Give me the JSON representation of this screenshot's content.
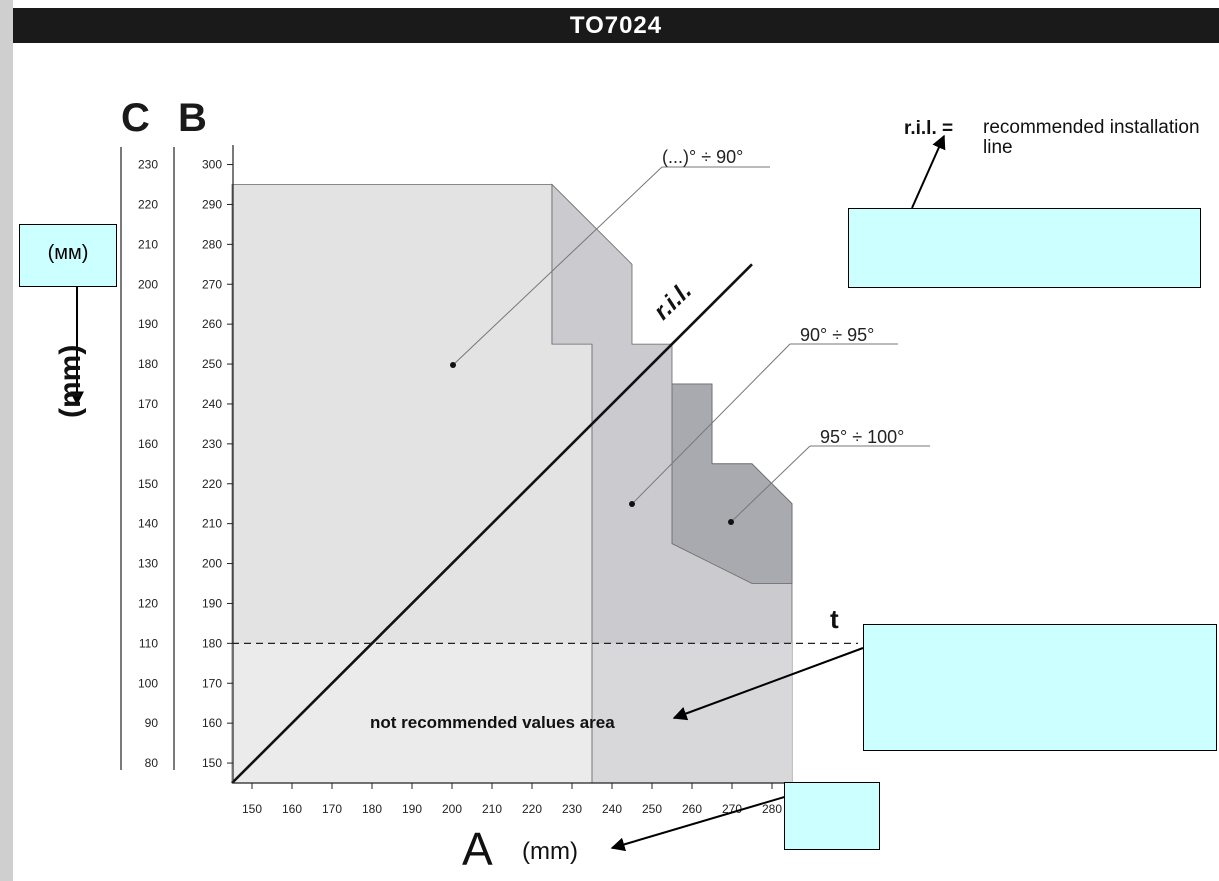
{
  "header": {
    "title": "TO7024"
  },
  "legend": {
    "key": "r.i.l. =",
    "description": "recommended installation line"
  },
  "callouts": {
    "mm_box": "(мм)",
    "left_unit": "(mm)"
  },
  "chart_data": {
    "type": "area",
    "x_axis": {
      "letter": "A",
      "unit": "(mm)",
      "ticks": [
        150,
        160,
        170,
        180,
        190,
        200,
        210,
        220,
        230,
        240,
        250,
        260,
        270,
        280
      ],
      "range": [
        145,
        285
      ]
    },
    "y_axis_B": {
      "letter": "B",
      "ticks": [
        150,
        160,
        170,
        180,
        190,
        200,
        210,
        220,
        230,
        240,
        250,
        260,
        270,
        280,
        290,
        300
      ],
      "range": [
        145,
        305
      ]
    },
    "y_axis_C": {
      "letter": "C",
      "ticks": [
        80,
        90,
        100,
        110,
        120,
        130,
        140,
        150,
        160,
        170,
        180,
        190,
        200,
        210,
        220,
        230
      ]
    },
    "zones": [
      {
        "name": "(...)° ÷ 90°",
        "fill": "#e3e3e3",
        "polygon": [
          [
            145,
            145
          ],
          [
            145,
            295
          ],
          [
            225,
            295
          ],
          [
            225,
            255
          ],
          [
            235,
            255
          ],
          [
            235,
            145
          ]
        ]
      },
      {
        "name": "90° ÷ 95°",
        "fill": "#cbcbcf",
        "polygon": [
          [
            235,
            145
          ],
          [
            235,
            255
          ],
          [
            225,
            255
          ],
          [
            225,
            295
          ],
          [
            230,
            290
          ],
          [
            245,
            275
          ],
          [
            245,
            255
          ],
          [
            255,
            255
          ],
          [
            255,
            245
          ],
          [
            265,
            245
          ],
          [
            265,
            225
          ],
          [
            275,
            225
          ],
          [
            285,
            215
          ],
          [
            285,
            145
          ]
        ]
      },
      {
        "name": "95° ÷ 100°",
        "fill": "#a9aaaf",
        "polygon": [
          [
            255,
            245
          ],
          [
            265,
            245
          ],
          [
            265,
            225
          ],
          [
            275,
            225
          ],
          [
            285,
            215
          ],
          [
            285,
            195
          ],
          [
            275,
            195
          ],
          [
            265,
            200
          ],
          [
            255,
            205
          ]
        ]
      }
    ],
    "threshold": {
      "label": "t",
      "y": 180
    },
    "not_recommended_label": "not recommended values area",
    "ril_line": {
      "label": "r.i.l.",
      "from": [
        145,
        145
      ],
      "to": [
        275,
        275
      ]
    }
  }
}
